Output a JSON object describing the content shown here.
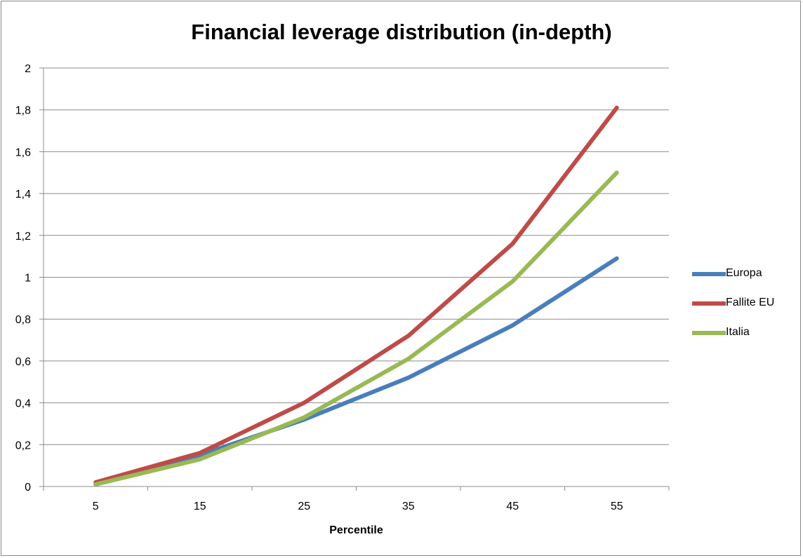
{
  "chart_data": {
    "type": "line",
    "title": "Financial leverage distribution (in-depth)",
    "xlabel": "Percentile",
    "ylabel": "",
    "categories": [
      "5",
      "15",
      "25",
      "35",
      "45",
      "55"
    ],
    "ylim": [
      0,
      2
    ],
    "yticks": [
      "0",
      "0,2",
      "0,4",
      "0,6",
      "0,8",
      "1",
      "1,2",
      "1,4",
      "1,6",
      "1,8",
      "2"
    ],
    "grid": true,
    "legend_position": "right",
    "series": [
      {
        "name": "Europa",
        "color": "#4A7EBB",
        "values": [
          0.01,
          0.15,
          0.32,
          0.52,
          0.77,
          1.09
        ]
      },
      {
        "name": "Fallite EU",
        "color": "#BE4B48",
        "values": [
          0.02,
          0.16,
          0.4,
          0.72,
          1.16,
          1.81
        ]
      },
      {
        "name": "Italia",
        "color": "#98B954",
        "values": [
          0.01,
          0.13,
          0.33,
          0.61,
          0.98,
          1.5
        ]
      }
    ]
  }
}
